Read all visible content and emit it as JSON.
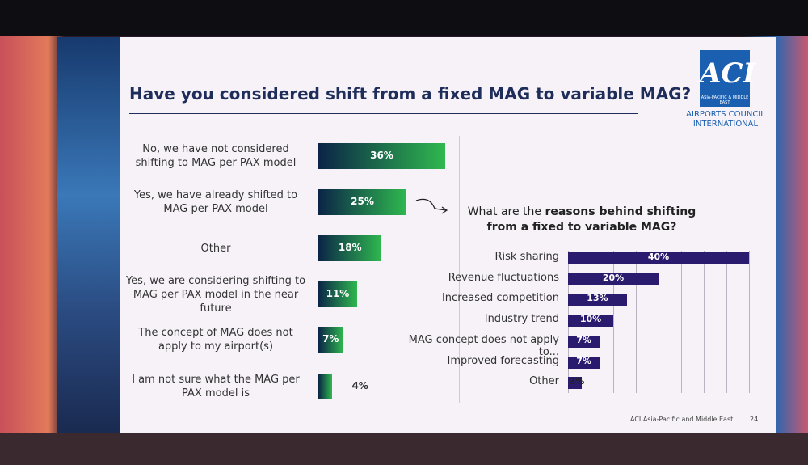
{
  "header": {
    "title": "Have you considered shift from a fixed MAG to variable MAG?"
  },
  "logo": {
    "mark": "ACI",
    "region": "ASIA-PACIFIC & MIDDLE EAST",
    "name": "AIRPORTS COUNCIL INTERNATIONAL"
  },
  "footer": {
    "source": "ACI Asia-Pacific and Middle East",
    "page": "24"
  },
  "chart_data": [
    {
      "type": "bar",
      "orientation": "horizontal",
      "categories": [
        "No, we have not considered shifting to MAG per PAX model",
        "Yes, we have already shifted to MAG per PAX model",
        "Other",
        "Yes, we are considering shifting to MAG per PAX model in the near future",
        "The concept of MAG does not apply to my airport(s)",
        "I am not sure what the MAG per PAX model is"
      ],
      "values": [
        36,
        25,
        18,
        11,
        7,
        4
      ],
      "value_labels": [
        "36%",
        "25%",
        "18%",
        "11%",
        "7%",
        "4%"
      ],
      "gradient_from": "#0b2447",
      "color": "#2fb84f"
    },
    {
      "type": "bar",
      "orientation": "horizontal",
      "title": [
        "What are the ",
        "reasons behind shifting from a fixed to variable MAG?"
      ],
      "categories": [
        "Risk sharing",
        "Revenue fluctuations",
        "Increased competition",
        "Industry trend",
        "MAG concept does not apply to...",
        "Improved forecasting",
        "Other"
      ],
      "values": [
        40,
        20,
        13,
        10,
        7,
        7,
        3
      ],
      "value_labels": [
        "40%",
        "20%",
        "13%",
        "10%",
        "7%",
        "7%",
        "3%"
      ],
      "xlim": [
        0,
        40
      ],
      "xticks": [
        0,
        5,
        10,
        15,
        20,
        25,
        30,
        35,
        40
      ],
      "grid": true,
      "color": "#2b1b6e"
    }
  ]
}
